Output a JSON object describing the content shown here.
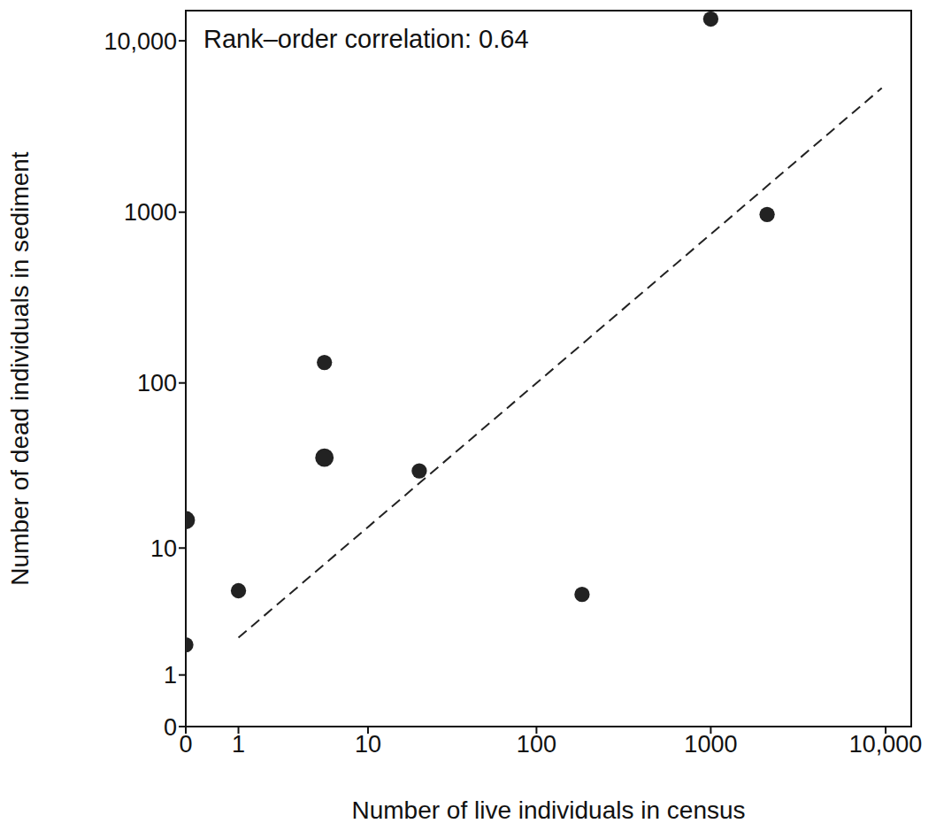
{
  "chart_data": {
    "type": "scatter",
    "annotation": "Rank–order correlation: 0.64",
    "x_label": "Number of live individuals in census",
    "y_label": "Number of dead individuals in sediment",
    "log": true,
    "grid": false,
    "color": "#222222",
    "marker": "circle",
    "x": [
      0,
      0,
      1,
      5.2,
      5.2,
      20.6,
      183,
      1000,
      2100
    ],
    "values": [
      2,
      15,
      5.2,
      132,
      36,
      30,
      4.9,
      13400,
      970
    ],
    "sizes": [
      1,
      2,
      1,
      1,
      2,
      1,
      1,
      1,
      1
    ],
    "trend_line": {
      "x": [
        1,
        9500
      ],
      "values": [
        2.3,
        5300
      ],
      "line_style": "dashed"
    },
    "xlim": [
      0,
      14000
    ],
    "ylim": [
      0,
      15000
    ],
    "xticks": [
      0,
      1,
      10,
      100,
      1000,
      {
        "value": 10000,
        "label": "10,000"
      }
    ],
    "yticks": [
      0,
      1,
      10,
      100,
      1000,
      {
        "value": 10000,
        "label": "10,000"
      }
    ]
  }
}
